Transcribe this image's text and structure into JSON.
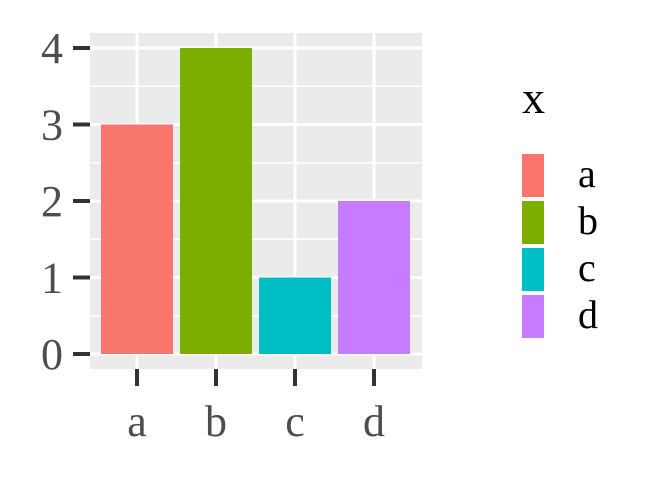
{
  "chart_data": {
    "type": "bar",
    "categories": [
      "a",
      "b",
      "c",
      "d"
    ],
    "values": [
      3,
      4,
      1,
      2
    ],
    "colors": [
      "#F8766D",
      "#7CAE00",
      "#00BFC4",
      "#C77CFF"
    ],
    "ylim": [
      0,
      4
    ],
    "y_ticks": [
      0,
      1,
      2,
      3,
      4
    ],
    "title": "",
    "xlabel": "",
    "ylabel": "",
    "grid": true,
    "panel_background": "#EBEBEB",
    "legend": {
      "title": "x",
      "position": "right",
      "entries": [
        "a",
        "b",
        "c",
        "d"
      ]
    }
  }
}
